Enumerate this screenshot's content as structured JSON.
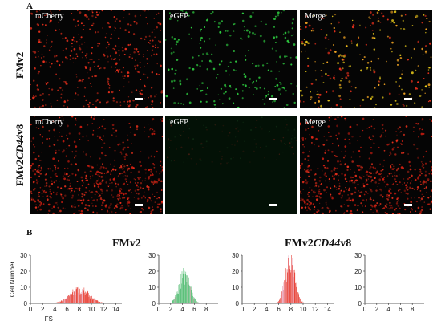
{
  "panel_a_label": "A",
  "panel_b_label": "B",
  "rows": [
    {
      "label": "FMv2",
      "label_italic": "",
      "label_suffix": "",
      "tiles": [
        {
          "label": "mCherry",
          "type": "red"
        },
        {
          "label": "eGFP",
          "type": "green"
        },
        {
          "label": "Merge",
          "type": "yellow"
        }
      ]
    },
    {
      "label": "FMv2",
      "label_italic": "CD44",
      "label_suffix": "v8",
      "tiles": [
        {
          "label": "mCherry",
          "type": "red_dense"
        },
        {
          "label": "eGFP",
          "type": "green_dim"
        },
        {
          "label": "Merge",
          "type": "red_dense"
        }
      ]
    }
  ],
  "colors": {
    "red": "#e8301c",
    "green": "#2ecc40",
    "yellow": "#f2d21b",
    "hist_red": "#e8453a",
    "hist_green": "#5cc07a",
    "hist_pink": "#e9a0b4"
  },
  "titles": {
    "left": {
      "main": "FMv2",
      "italic": "",
      "suffix": ""
    },
    "right": {
      "main": "FMv2",
      "italic": "CD44",
      "suffix": "v8"
    }
  },
  "chart_data": [
    {
      "type": "bar",
      "title": "",
      "ylabel": "Cell Number",
      "xlabel": "FS",
      "ylim": [
        0,
        30
      ],
      "yticks": [
        0,
        10,
        20,
        30
      ],
      "xticks": [
        0,
        2,
        4,
        6,
        8,
        10,
        12,
        14
      ],
      "xlim": [
        0,
        15
      ],
      "color": "#e8453a",
      "center": 8.0,
      "spread": 1.6,
      "peak": 10,
      "xrange": [
        4.2,
        12
      ]
    },
    {
      "type": "bar",
      "title": "",
      "ylabel": "",
      "xlabel": "",
      "ylim": [
        0,
        30
      ],
      "yticks": [
        0,
        10,
        20,
        30
      ],
      "xticks": [
        0,
        2,
        4,
        6,
        8
      ],
      "xlim": [
        0,
        10
      ],
      "color": "#5cc07a",
      "center": 4.3,
      "spread": 0.9,
      "peak": 21,
      "xrange": [
        2.2,
        7
      ]
    },
    {
      "type": "bar",
      "title": "",
      "ylabel": "",
      "xlabel": "",
      "ylim": [
        0,
        30
      ],
      "yticks": [
        0,
        10,
        20,
        30
      ],
      "xticks": [
        0,
        2,
        4,
        6,
        8,
        10,
        12,
        14
      ],
      "xlim": [
        0,
        15
      ],
      "color": "#e8453a",
      "center": 7.8,
      "spread": 0.8,
      "peak": 30,
      "xrange": [
        5.5,
        12.5
      ]
    },
    {
      "type": "bar",
      "title": "",
      "ylabel": "",
      "xlabel": "",
      "ylim": [
        0,
        30
      ],
      "yticks": [
        0,
        10,
        20,
        30
      ],
      "xticks": [
        0,
        2,
        4,
        6,
        8
      ],
      "xlim": [
        0,
        10
      ],
      "color": "#5cc07a",
      "center": 0,
      "spread": 1,
      "peak": 0,
      "xrange": [
        0,
        0
      ]
    }
  ]
}
